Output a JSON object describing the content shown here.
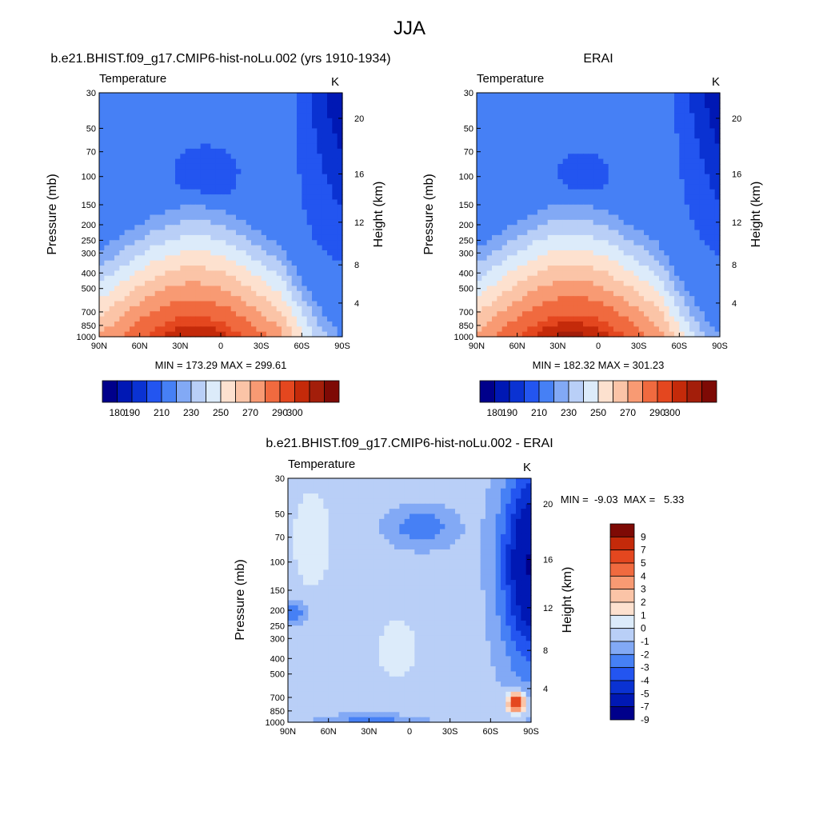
{
  "figure": {
    "title": "JJA",
    "colors": {
      "full_field": [
        "#00008b",
        "#0018b4",
        "#0a32d2",
        "#2355f0",
        "#4680f5",
        "#82a9f5",
        "#b9cff7",
        "#dcebfa",
        "#fde1cf",
        "#fbc4a7",
        "#f89a73",
        "#f06a3f",
        "#e4471f",
        "#c42a0a",
        "#a31e0a",
        "#7e0a05"
      ],
      "difference": [
        "#00008b",
        "#0018b4",
        "#0a32d2",
        "#2355f0",
        "#4680f5",
        "#82a9f5",
        "#b9cff7",
        "#dcebfa",
        "#fde1cf",
        "#fbc4a7",
        "#f89a73",
        "#f06a3f",
        "#e4471f",
        "#c42a0a",
        "#7e0a05"
      ]
    }
  },
  "chart_data": [
    {
      "type": "heatmap",
      "title": "b.e21.BHIST.f09_g17.CMIP6-hist-noLu.002 (yrs 1910-1934)",
      "left_label": "Temperature",
      "right_label": "K",
      "xlabel": "",
      "ylabel": "Pressure (mb)",
      "y2label": "Height (km)",
      "x_ticks": [
        "90N",
        "60N",
        "30N",
        "0",
        "30S",
        "60S",
        "90S"
      ],
      "y_ticks": [
        "30",
        "50",
        "70",
        "100",
        "150",
        "200",
        "250",
        "300",
        "400",
        "500",
        "700",
        "850",
        "1000"
      ],
      "y2_ticks": [
        "20",
        "16",
        "12",
        "8",
        "4"
      ],
      "stats": "MIN = 173.29  MAX = 299.61",
      "colorbar_labels": [
        "180",
        "190",
        "210",
        "230",
        "250",
        "270",
        "290",
        "300"
      ],
      "field_min": 173.29,
      "field_max": 299.61
    },
    {
      "type": "heatmap",
      "title": "ERAI",
      "left_label": "Temperature",
      "right_label": "K",
      "xlabel": "",
      "ylabel": "Pressure (mb)",
      "y2label": "Height (km)",
      "x_ticks": [
        "90N",
        "60N",
        "30N",
        "0",
        "30S",
        "60S",
        "90S"
      ],
      "y_ticks": [
        "30",
        "50",
        "70",
        "100",
        "150",
        "200",
        "250",
        "300",
        "400",
        "500",
        "700",
        "850",
        "1000"
      ],
      "y2_ticks": [
        "20",
        "16",
        "12",
        "8",
        "4"
      ],
      "stats": "MIN = 182.32  MAX = 301.23",
      "colorbar_labels": [
        "180",
        "190",
        "210",
        "230",
        "250",
        "270",
        "290",
        "300"
      ],
      "field_min": 182.32,
      "field_max": 301.23
    },
    {
      "type": "heatmap",
      "title": "b.e21.BHIST.f09_g17.CMIP6-hist-noLu.002 - ERAI",
      "left_label": "Temperature",
      "right_label": "K",
      "xlabel": "",
      "ylabel": "Pressure (mb)",
      "y2label": "Height (km)",
      "x_ticks": [
        "90N",
        "60N",
        "30N",
        "0",
        "30S",
        "60S",
        "90S"
      ],
      "y_ticks": [
        "30",
        "50",
        "70",
        "100",
        "150",
        "200",
        "250",
        "300",
        "400",
        "500",
        "700",
        "850",
        "1000"
      ],
      "y2_ticks": [
        "20",
        "16",
        "12",
        "8",
        "4"
      ],
      "stats": "MIN =  -9.03  MAX =   5.33",
      "colorbar_labels": [
        "9",
        "7",
        "5",
        "4",
        "3",
        "2",
        "1",
        "0",
        "-1",
        "-2",
        "-3",
        "-4",
        "-5",
        "-7",
        "-9"
      ],
      "field_min": -9.03,
      "field_max": 5.33
    }
  ]
}
